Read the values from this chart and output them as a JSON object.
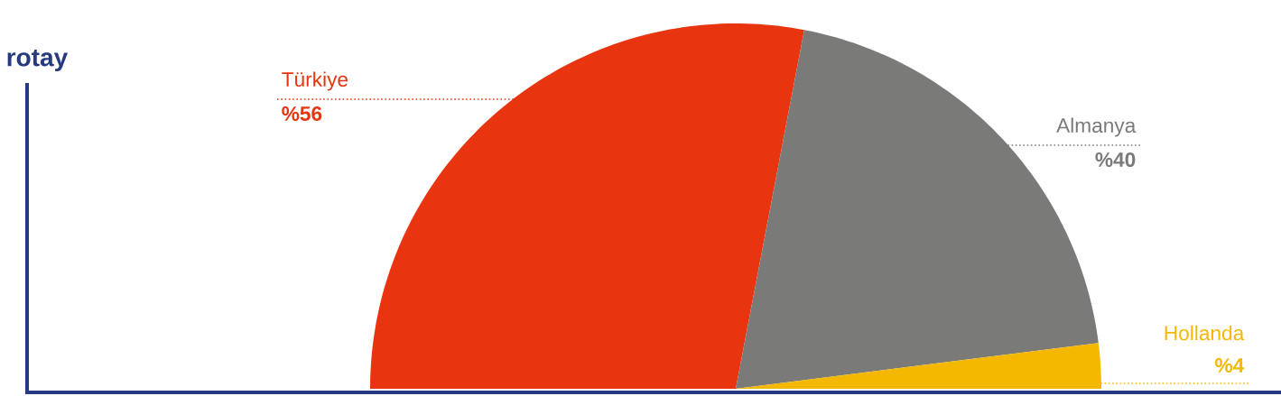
{
  "chart_data": {
    "type": "pie",
    "title": "rotay",
    "categories": [
      "Türkiye",
      "Almanya",
      "Hollanda"
    ],
    "values": [
      56,
      40,
      4
    ],
    "value_labels": [
      "%56",
      "%40",
      "%4"
    ],
    "colors": [
      "#e8340f",
      "#7a7a78",
      "#f5b800"
    ]
  }
}
